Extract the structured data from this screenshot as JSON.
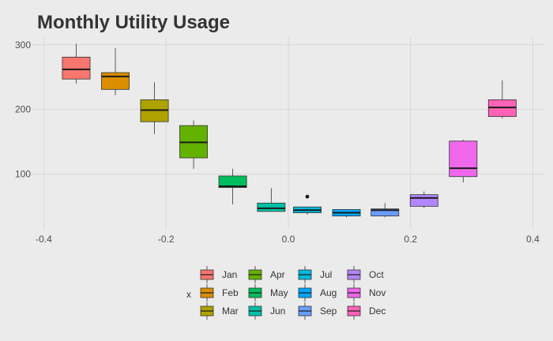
{
  "title": "Monthly Utility Usage",
  "chart_data": {
    "type": "boxplot",
    "title": "Monthly Utility Usage",
    "xlabel": "",
    "ylabel": "",
    "xlim": [
      -0.42,
      0.42
    ],
    "ylim": [
      15,
      312
    ],
    "x_ticks": [
      -0.4,
      -0.2,
      0.0,
      0.2,
      0.4
    ],
    "x_tick_labels": [
      "-0.4",
      "-0.2",
      "0.0",
      "0.2",
      "0.4"
    ],
    "y_ticks": [
      100,
      200,
      300
    ],
    "y_tick_labels": [
      "100",
      "200",
      "300"
    ],
    "grid": true,
    "legend": {
      "title": "x",
      "placement": "bottom",
      "entries": [
        "Jan",
        "Feb",
        "Mar",
        "Apr",
        "May",
        "Jun",
        "Jul",
        "Aug",
        "Sep",
        "Oct",
        "Nov",
        "Dec"
      ]
    },
    "series": [
      {
        "name": "Jan",
        "x": -0.347,
        "color": "#F8766D",
        "whisker_low": 240,
        "q1": 247,
        "median": 262,
        "q3": 281,
        "whisker_high": 302,
        "outliers": []
      },
      {
        "name": "Feb",
        "x": -0.283,
        "color": "#DB8E00",
        "whisker_low": 222,
        "q1": 231,
        "median": 251,
        "q3": 257,
        "whisker_high": 295,
        "outliers": []
      },
      {
        "name": "Mar",
        "x": -0.219,
        "color": "#AEA200",
        "whisker_low": 162,
        "q1": 181,
        "median": 199,
        "q3": 215,
        "whisker_high": 242,
        "outliers": []
      },
      {
        "name": "Apr",
        "x": -0.155,
        "color": "#64B200",
        "whisker_low": 108,
        "q1": 125,
        "median": 149,
        "q3": 175,
        "whisker_high": 183,
        "outliers": []
      },
      {
        "name": "May",
        "x": -0.091,
        "color": "#00BD5C",
        "whisker_low": 53,
        "q1": 79,
        "median": 81,
        "q3": 97,
        "whisker_high": 108,
        "outliers": []
      },
      {
        "name": "Jun",
        "x": -0.028,
        "color": "#00C1A7",
        "whisker_low": 42,
        "q1": 42,
        "median": 47,
        "q3": 55,
        "whisker_high": 78,
        "outliers": []
      },
      {
        "name": "Jul",
        "x": 0.031,
        "color": "#00BADE",
        "whisker_low": 37,
        "q1": 40,
        "median": 44,
        "q3": 49,
        "whisker_high": 49,
        "outliers": [
          65
        ]
      },
      {
        "name": "Aug",
        "x": 0.095,
        "color": "#00A6FF",
        "whisker_low": 33,
        "q1": 35,
        "median": 40,
        "q3": 45,
        "whisker_high": 45,
        "outliers": []
      },
      {
        "name": "Sep",
        "x": 0.158,
        "color": "#6A9CFF",
        "whisker_low": 33,
        "q1": 35,
        "median": 44,
        "q3": 46,
        "whisker_high": 55,
        "outliers": []
      },
      {
        "name": "Oct",
        "x": 0.222,
        "color": "#B385FF",
        "whisker_low": 47,
        "q1": 50,
        "median": 63,
        "q3": 68,
        "whisker_high": 73,
        "outliers": []
      },
      {
        "name": "Nov",
        "x": 0.286,
        "color": "#EF67EB",
        "whisker_low": 87,
        "q1": 96,
        "median": 109,
        "q3": 151,
        "whisker_high": 153,
        "outliers": []
      },
      {
        "name": "Dec",
        "x": 0.35,
        "color": "#FF63B6",
        "whisker_low": 186,
        "q1": 189,
        "median": 203,
        "q3": 215,
        "whisker_high": 245,
        "outliers": []
      }
    ]
  }
}
